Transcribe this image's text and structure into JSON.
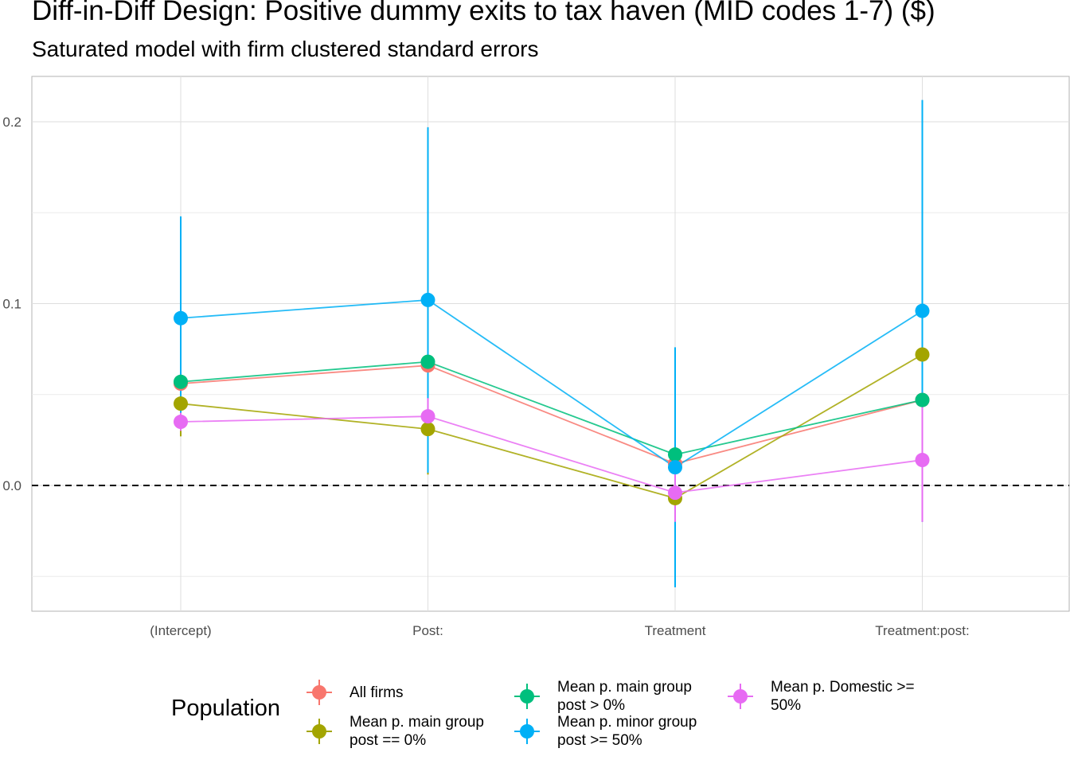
{
  "title": "Diff-in-Diff Design: Positive dummy exits to tax haven (MID codes 1-7)  ($)",
  "subtitle": "Saturated model with firm clustered standard errors",
  "legend": {
    "title": "Population"
  },
  "chart_data": {
    "type": "line",
    "title": "Diff-in-Diff Design: Positive dummy exits to tax haven (MID codes 1-7)  ($)",
    "subtitle": "Saturated model with firm clustered standard errors",
    "xlabel": "",
    "ylabel": "",
    "categories": [
      "(Intercept)",
      "Post:",
      "Treatment",
      "Treatment:post:"
    ],
    "y_ticks": [
      "0.0",
      "0.1",
      "0.2"
    ],
    "ylim": [
      -0.069,
      0.225
    ],
    "grid": true,
    "reference_line": {
      "y": 0.0,
      "style": "dashed",
      "color": "#000000"
    },
    "legend_title": "Population",
    "legend_position": "bottom",
    "series": [
      {
        "name": "All firms",
        "color": "#F8766D",
        "values": [
          0.056,
          0.066,
          0.012,
          0.047
        ],
        "lower": [
          0.05,
          0.06,
          0.005,
          0.04
        ],
        "upper": [
          0.062,
          0.072,
          0.019,
          0.054
        ]
      },
      {
        "name": "Mean p. main group\npost == 0%",
        "color": "#A3A500",
        "values": [
          0.045,
          0.031,
          -0.007,
          0.072
        ],
        "lower": [
          0.027,
          0.006,
          -0.018,
          0.06
        ],
        "upper": [
          0.063,
          0.056,
          0.004,
          0.084
        ]
      },
      {
        "name": "Mean p. main group\npost > 0%",
        "color": "#00BF7D",
        "values": [
          0.057,
          0.068,
          0.017,
          0.047
        ],
        "lower": [
          0.05,
          0.06,
          0.01,
          0.04
        ],
        "upper": [
          0.064,
          0.076,
          0.024,
          0.054
        ]
      },
      {
        "name": "Mean p. minor group\npost >= 50%",
        "color": "#00B0F6",
        "values": [
          0.092,
          0.102,
          0.01,
          0.096
        ],
        "lower": [
          0.036,
          0.007,
          -0.056,
          -0.02
        ],
        "upper": [
          0.148,
          0.197,
          0.076,
          0.212
        ]
      },
      {
        "name": "Mean p. Domestic >=\n50%",
        "color": "#E76BF3",
        "values": [
          0.035,
          0.038,
          -0.004,
          0.014
        ],
        "lower": [
          0.03,
          0.028,
          -0.02,
          -0.02
        ],
        "upper": [
          0.04,
          0.048,
          0.012,
          0.048
        ]
      }
    ]
  }
}
